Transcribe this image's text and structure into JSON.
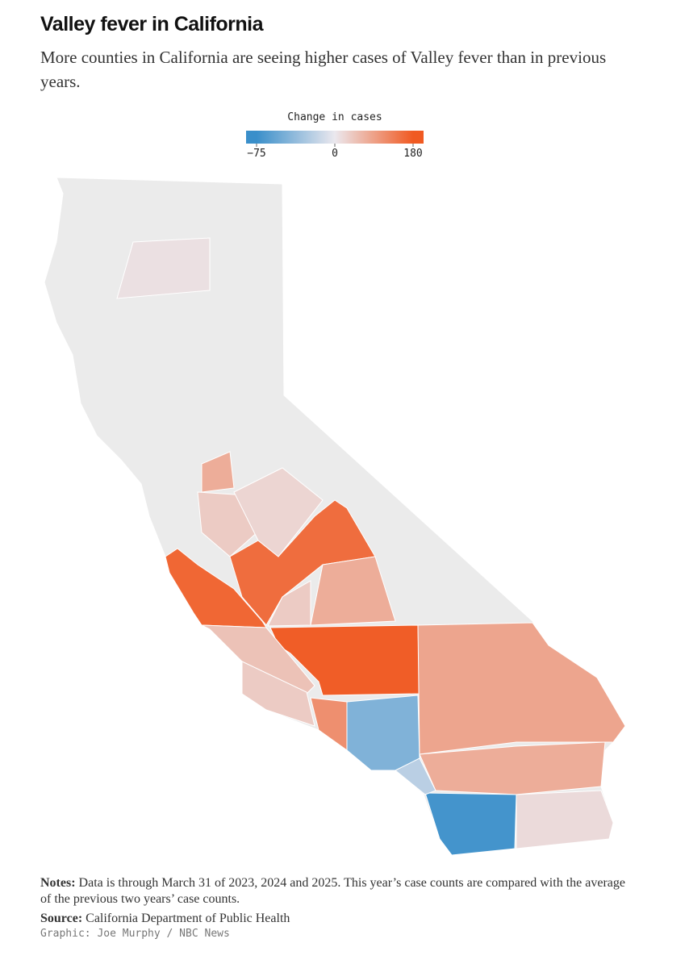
{
  "chart_data": {
    "type": "map",
    "title": "Valley fever in California",
    "subtitle": "More counties in California are seeing higher cases of Valley fever than in previous years.",
    "legend": {
      "title": "Change in cases",
      "ticks": [
        {
          "value": -75,
          "label": "−75"
        },
        0,
        180
      ],
      "colors": [
        "#3a8fca",
        "#ebe8ee",
        "#f05a22"
      ]
    },
    "base_color": "#ebebeb",
    "values": [
      175,
      150,
      160,
      60,
      25,
      70,
      60,
      -70,
      10,
      -15,
      -40,
      100,
      35,
      25,
      25,
      60,
      15,
      5
    ],
    "notes_label": "Notes:",
    "notes": "Data is through March 31 of 2023, 2024 and 2025. This year’s case counts are compared with the average of the previous two years’ case counts.",
    "source_label": "Source:",
    "source": "California Department of Public Health",
    "credit": "Graphic: Joe Murphy / NBC News"
  }
}
